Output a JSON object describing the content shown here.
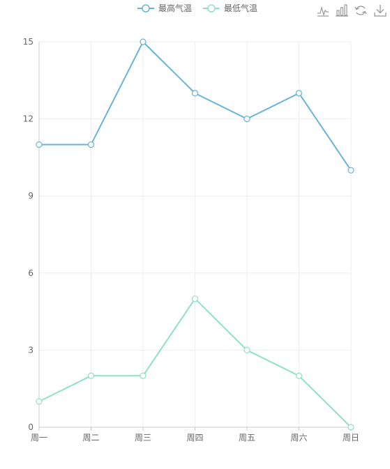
{
  "toolbox": {
    "buttons": [
      {
        "name": "line-chart-icon",
        "label": "line"
      },
      {
        "name": "bar-chart-icon",
        "label": "bar"
      },
      {
        "name": "restore-icon",
        "label": "restore"
      },
      {
        "name": "download-icon",
        "label": "save"
      }
    ],
    "icon_color": "#999999"
  },
  "chart_data": {
    "type": "line",
    "categories": [
      "周一",
      "周二",
      "周三",
      "周四",
      "周五",
      "周六",
      "周日"
    ],
    "series": [
      {
        "name": "最高气温",
        "color": "#68b3d8",
        "values": [
          11,
          11,
          15,
          13,
          12,
          13,
          10
        ]
      },
      {
        "name": "最低气温",
        "color": "#8fe0c8",
        "values": [
          1,
          2,
          2,
          5,
          3,
          2,
          0
        ]
      }
    ],
    "yticks": [
      0,
      3,
      6,
      9,
      12,
      15
    ],
    "ylim": [
      0,
      15
    ],
    "grid": true,
    "legend": "top-center"
  }
}
